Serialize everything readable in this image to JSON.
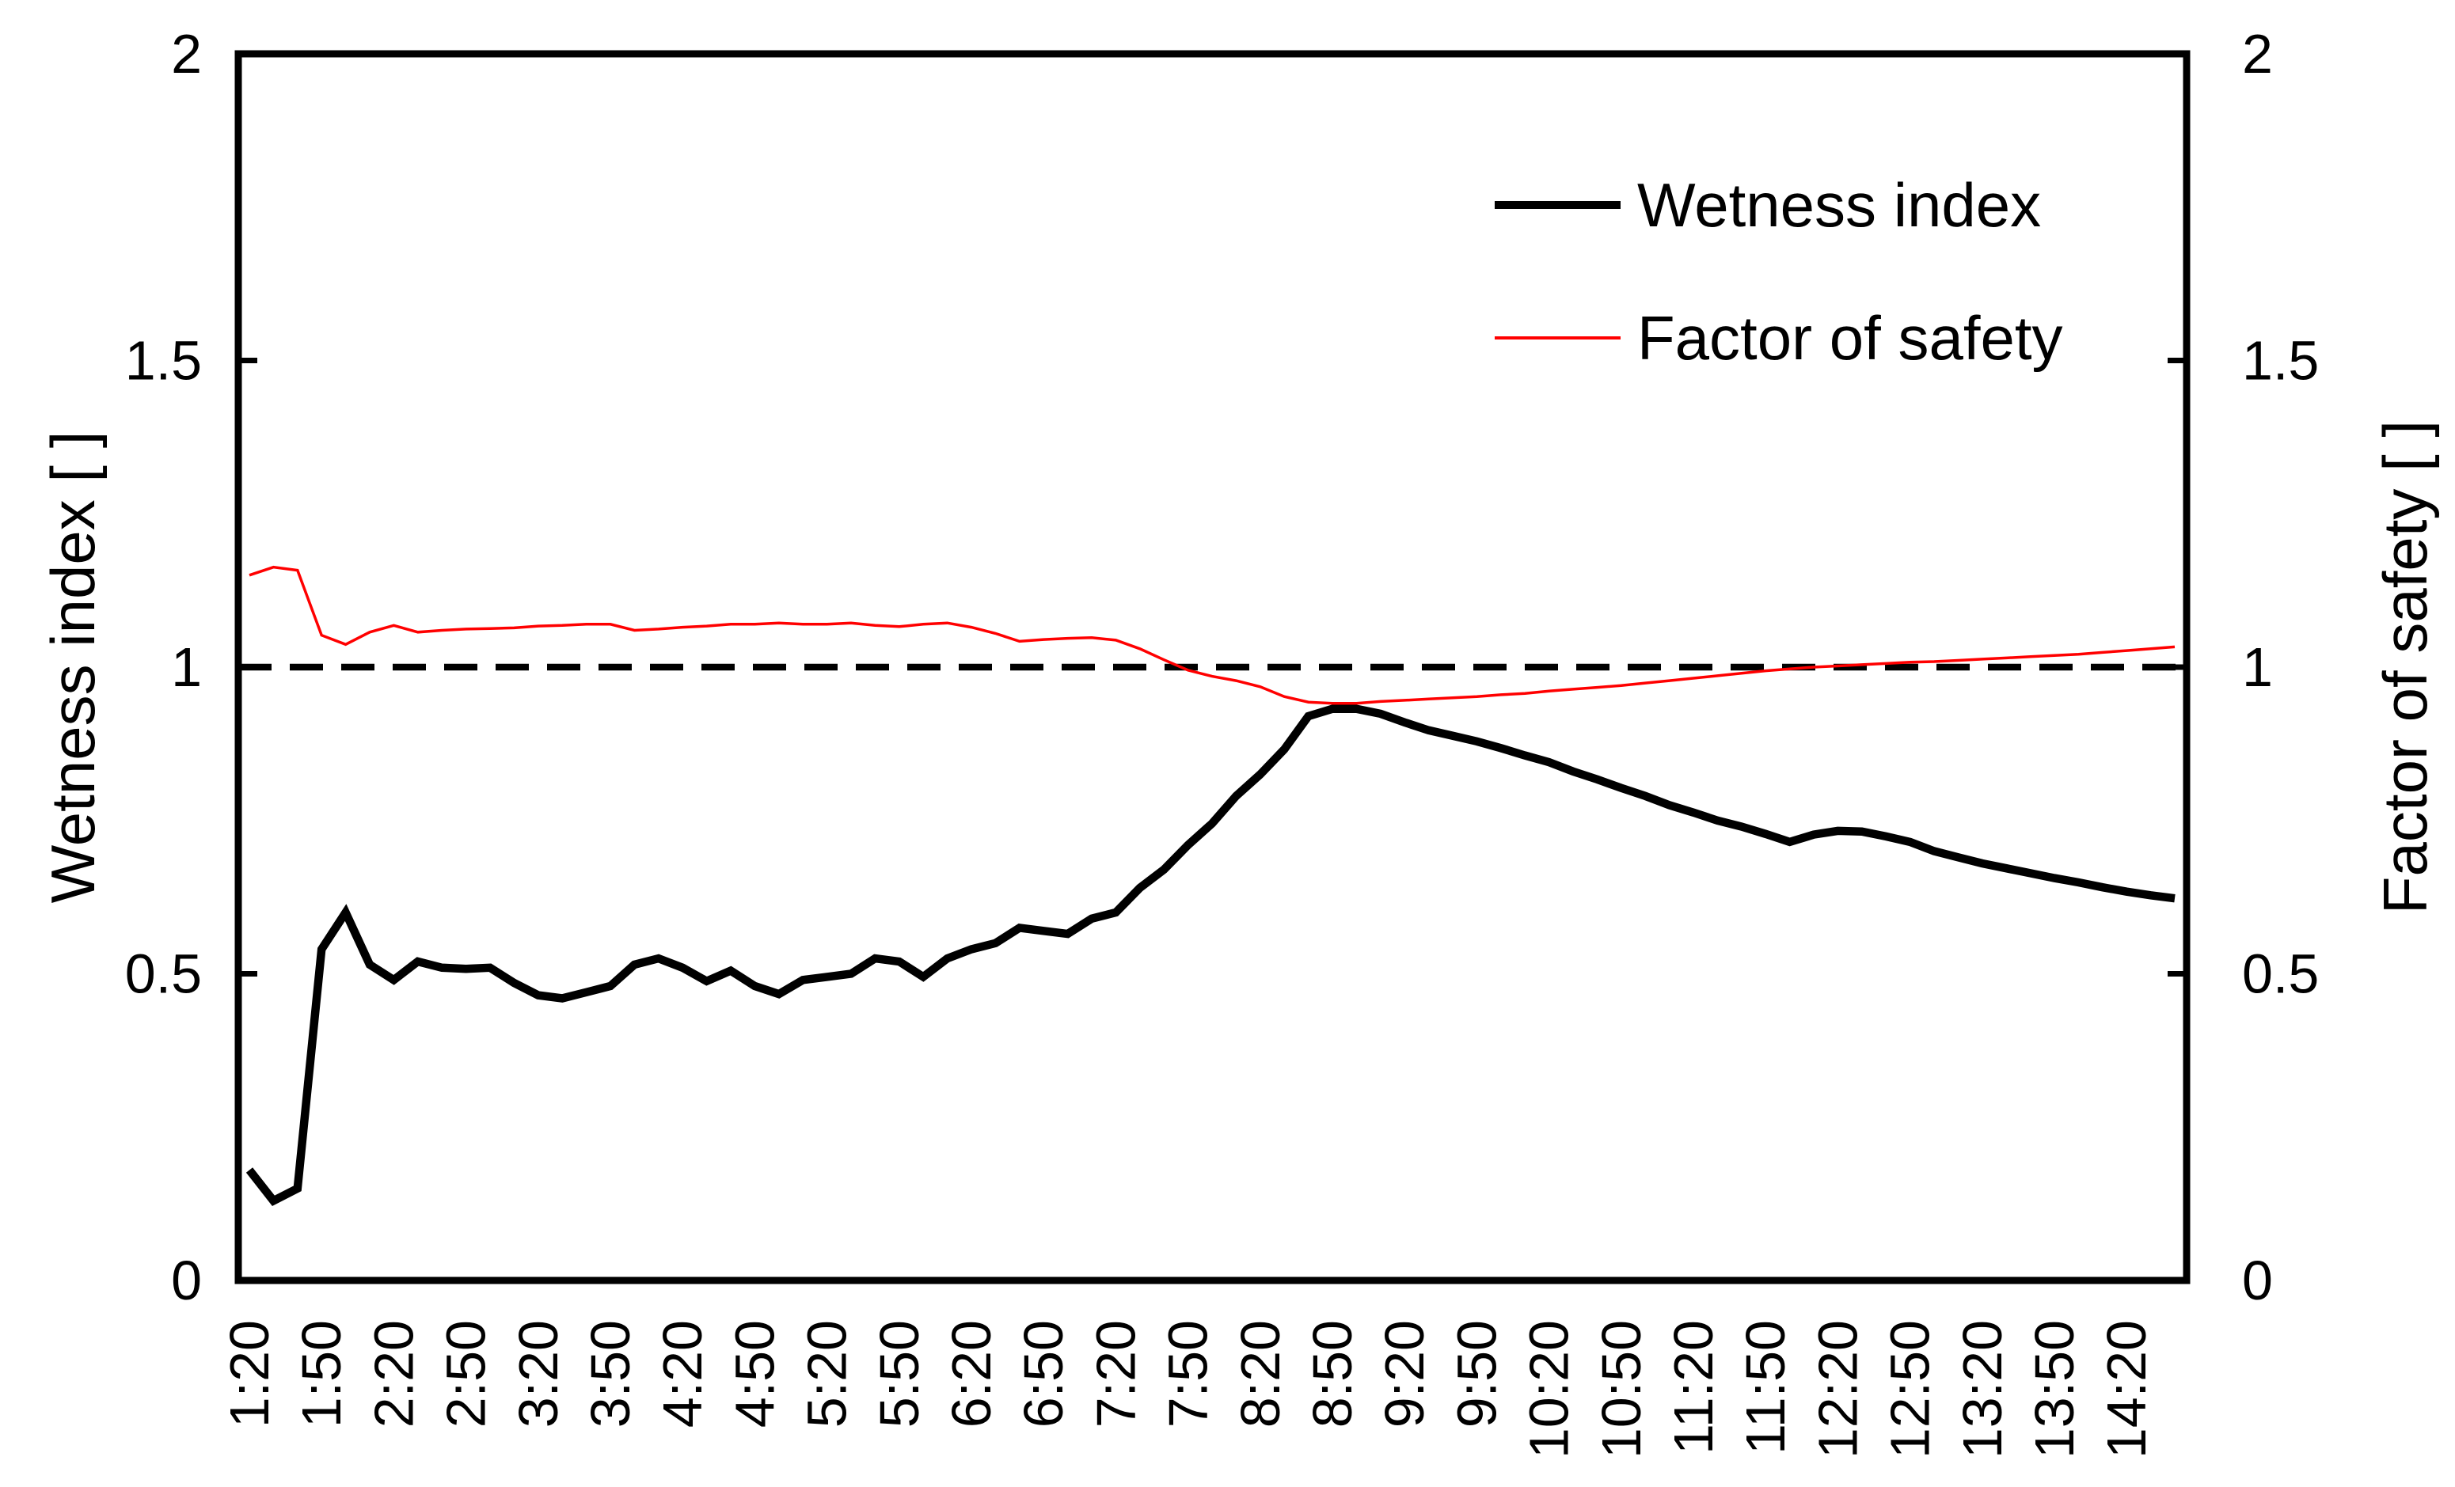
{
  "figure": {
    "background": "#FFFFFF",
    "axes": {
      "left": {
        "title": "Wetness index [ ]",
        "tick_labels": [
          "0",
          "0.5",
          "1",
          "1.5",
          "2"
        ],
        "tick_values": [
          0,
          0.5,
          1,
          1.5,
          2
        ],
        "range": [
          0,
          2
        ]
      },
      "right": {
        "title": "Factor of safety [ ]",
        "tick_labels": [
          "0",
          "0.5",
          "1",
          "1.5",
          "2"
        ],
        "tick_values": [
          0,
          0.5,
          1,
          1.5,
          2
        ],
        "range": [
          0,
          2
        ]
      },
      "x": {
        "tick_labels": [
          "1:20",
          "1:50",
          "2:20",
          "2:50",
          "3:20",
          "3:50",
          "4:20",
          "4:50",
          "5:20",
          "5:50",
          "6:20",
          "6:50",
          "7:20",
          "7:50",
          "8:20",
          "8:50",
          "9:20",
          "9:50",
          "10:20",
          "10:50",
          "11:20",
          "11:50",
          "12:20",
          "12:50",
          "13:20",
          "13:50",
          "14:20"
        ],
        "label_step_minutes": 30
      }
    },
    "colors": {
      "wetness_index": "#000000",
      "factor_of_safety": "#FF0000",
      "reference_line": "#000000"
    }
  },
  "chart_data": {
    "type": "line",
    "title": "",
    "xlabel": "",
    "y_left_label": "Wetness index [ ]",
    "y_right_label": "Factor of safety [ ]",
    "ylim_left": [
      0,
      2
    ],
    "ylim_right": [
      0,
      2
    ],
    "grid": false,
    "legend_position": "upper right",
    "reference_line": {
      "value": 1.0,
      "style": "dashed",
      "color": "#000000",
      "axis": "both"
    },
    "x": [
      "1:20",
      "1:30",
      "1:40",
      "1:50",
      "2:00",
      "2:10",
      "2:20",
      "2:30",
      "2:40",
      "2:50",
      "3:00",
      "3:10",
      "3:20",
      "3:30",
      "3:40",
      "3:50",
      "4:00",
      "4:10",
      "4:20",
      "4:30",
      "4:40",
      "4:50",
      "5:00",
      "5:10",
      "5:20",
      "5:30",
      "5:40",
      "5:50",
      "6:00",
      "6:10",
      "6:20",
      "6:30",
      "6:40",
      "6:50",
      "7:00",
      "7:10",
      "7:20",
      "7:30",
      "7:40",
      "7:50",
      "8:00",
      "8:10",
      "8:20",
      "8:30",
      "8:40",
      "8:50",
      "9:00",
      "9:10",
      "9:20",
      "9:30",
      "9:40",
      "9:50",
      "10:00",
      "10:10",
      "10:20",
      "10:30",
      "10:40",
      "10:50",
      "11:00",
      "11:10",
      "11:20",
      "11:30",
      "11:40",
      "11:50",
      "12:00",
      "12:10",
      "12:20",
      "12:30",
      "12:40",
      "12:50",
      "13:00",
      "13:10",
      "13:20",
      "13:30",
      "13:40",
      "13:50",
      "14:00",
      "14:10",
      "14:20",
      "14:30",
      "14:40"
    ],
    "series": [
      {
        "name": "Wetness index",
        "axis": "left",
        "color": "#000000",
        "line_width": 10.5,
        "values": [
          0.18,
          0.13,
          0.15,
          0.54,
          0.6,
          0.515,
          0.49,
          0.52,
          0.51,
          0.508,
          0.51,
          0.485,
          0.465,
          0.46,
          0.47,
          0.48,
          0.515,
          0.525,
          0.51,
          0.488,
          0.505,
          0.48,
          0.467,
          0.49,
          0.495,
          0.5,
          0.525,
          0.52,
          0.495,
          0.525,
          0.54,
          0.55,
          0.575,
          0.57,
          0.565,
          0.59,
          0.6,
          0.64,
          0.67,
          0.71,
          0.745,
          0.79,
          0.825,
          0.866,
          0.92,
          0.932,
          0.932,
          0.924,
          0.91,
          0.897,
          0.888,
          0.879,
          0.868,
          0.856,
          0.845,
          0.83,
          0.817,
          0.803,
          0.79,
          0.775,
          0.763,
          0.75,
          0.74,
          0.728,
          0.715,
          0.727,
          0.733,
          0.732,
          0.724,
          0.715,
          0.7,
          0.69,
          0.68,
          0.672,
          0.664,
          0.656,
          0.649,
          0.641,
          0.634,
          0.628,
          0.623
        ]
      },
      {
        "name": "Factor of safety",
        "axis": "right",
        "color": "#FF0000",
        "line_width": 3.5,
        "values": [
          1.15,
          1.163,
          1.158,
          1.052,
          1.037,
          1.057,
          1.068,
          1.057,
          1.06,
          1.062,
          1.063,
          1.064,
          1.067,
          1.068,
          1.07,
          1.07,
          1.06,
          1.062,
          1.065,
          1.067,
          1.07,
          1.07,
          1.072,
          1.07,
          1.07,
          1.072,
          1.068,
          1.066,
          1.07,
          1.072,
          1.065,
          1.055,
          1.042,
          1.045,
          1.047,
          1.048,
          1.044,
          1.03,
          1.012,
          0.995,
          0.985,
          0.978,
          0.968,
          0.952,
          0.943,
          0.941,
          0.941,
          0.944,
          0.946,
          0.948,
          0.95,
          0.952,
          0.955,
          0.957,
          0.961,
          0.964,
          0.967,
          0.97,
          0.974,
          0.978,
          0.982,
          0.986,
          0.99,
          0.994,
          0.997,
          1.0,
          1.002,
          1.004,
          1.006,
          1.008,
          1.009,
          1.011,
          1.013,
          1.015,
          1.017,
          1.019,
          1.021,
          1.024,
          1.027,
          1.03,
          1.033
        ]
      }
    ],
    "legend": [
      {
        "label": "Wetness index",
        "color": "#000000"
      },
      {
        "label": "Factor of safety",
        "color": "#FF0000"
      }
    ]
  }
}
